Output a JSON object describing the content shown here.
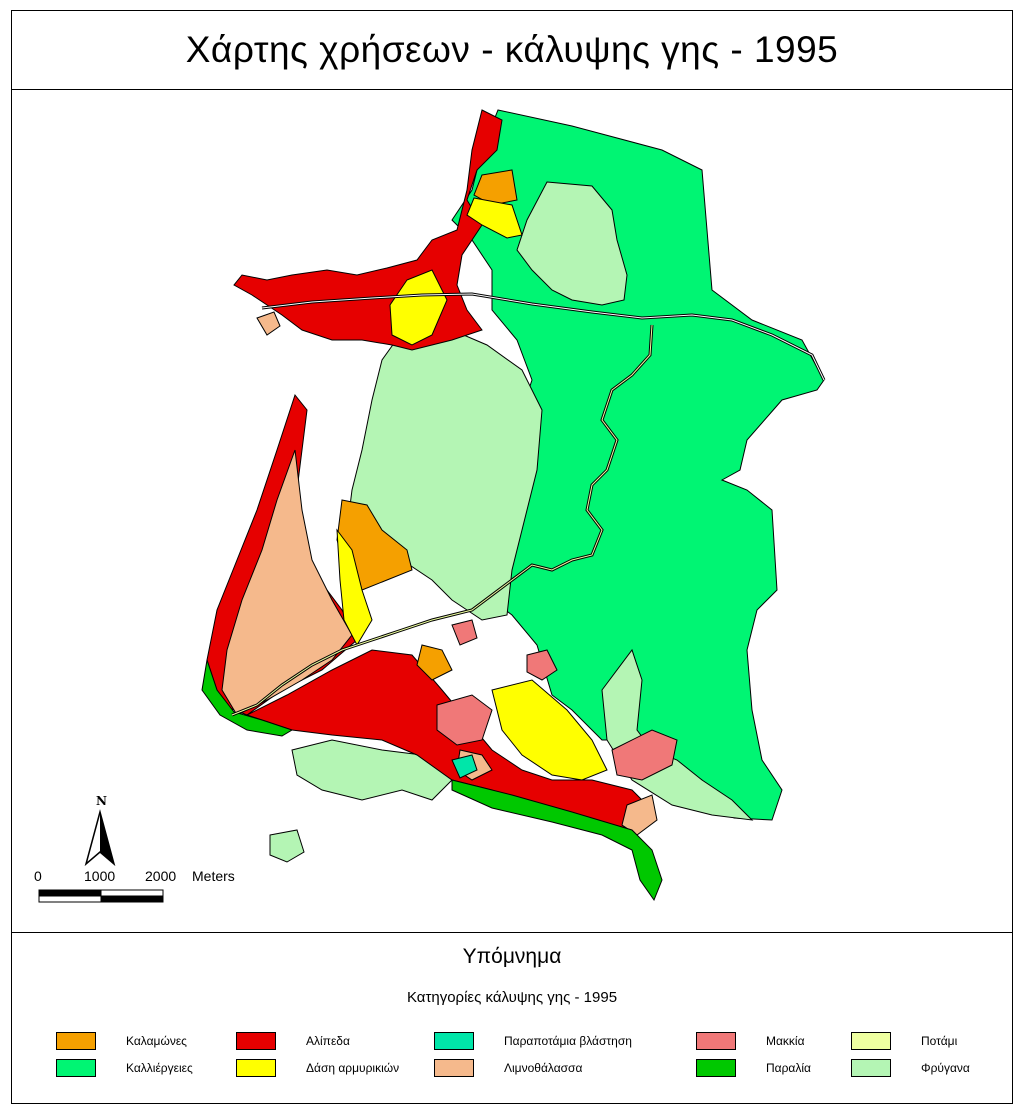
{
  "title": "Χάρτης χρήσεων - κάλυψης γης - 1995",
  "legend": {
    "title": "Υπόμνημα",
    "subtitle": "Κατηγορίες κάλυψης γης - 1995",
    "items": [
      {
        "label": "Καλαμώνες",
        "color": "#f5a000"
      },
      {
        "label": "Καλλιέργειες",
        "color": "#00f573"
      },
      {
        "label": "Αλίπεδα",
        "color": "#e60000"
      },
      {
        "label": "Δάση αρμυρικιών",
        "color": "#ffff00"
      },
      {
        "label": "Παραποτάμια βλάστηση",
        "color": "#00e6a9"
      },
      {
        "label": "Λιμνοθάλασσα",
        "color": "#f5b98c"
      },
      {
        "label": "Μακκία",
        "color": "#f07878"
      },
      {
        "label": "Παραλία",
        "color": "#00c800"
      },
      {
        "label": "Ποτάμι",
        "color": "#eeffa0"
      },
      {
        "label": "Φρύγανα",
        "color": "#b4f5b4"
      }
    ]
  },
  "north_arrow": {
    "label": "N"
  },
  "scale_bar": {
    "ticks": [
      "0",
      "1000",
      "2000"
    ],
    "unit": "Meters"
  }
}
